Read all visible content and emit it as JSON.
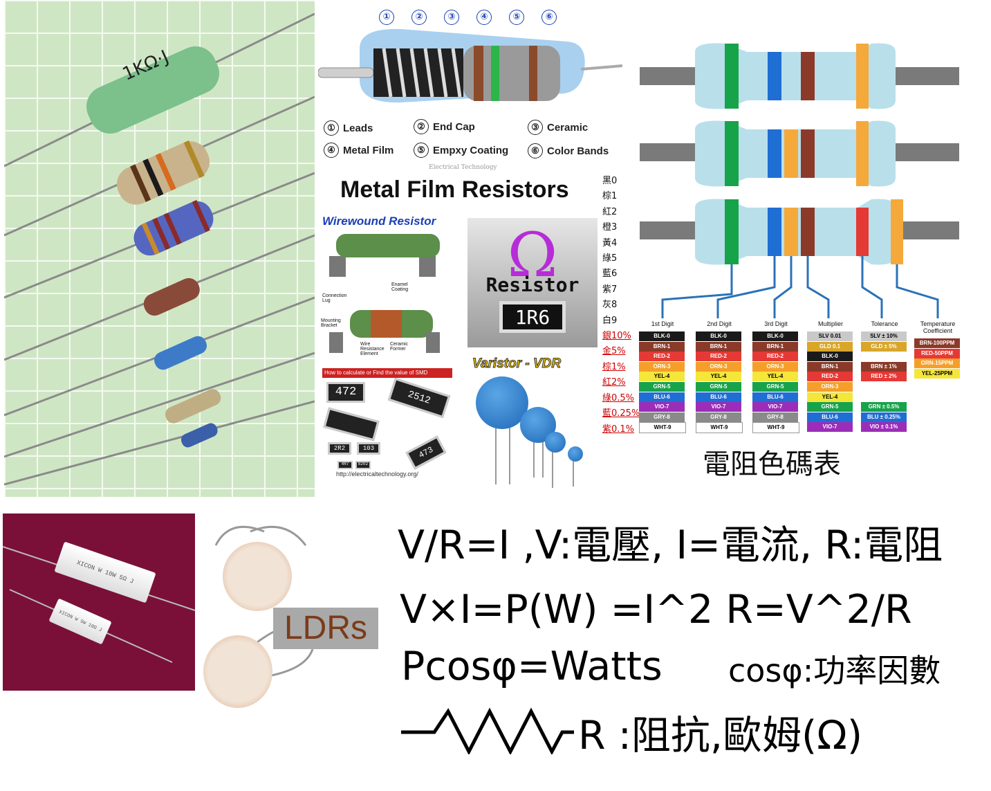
{
  "metal_film": {
    "top_numbers": [
      "①",
      "②",
      "③",
      "④",
      "⑤",
      "⑥"
    ],
    "parts": [
      {
        "num": "①",
        "label": "Leads"
      },
      {
        "num": "②",
        "label": "End Cap"
      },
      {
        "num": "③",
        "label": "Ceramic"
      },
      {
        "num": "④",
        "label": "Metal Film"
      },
      {
        "num": "⑤",
        "label": "Empxy Coating"
      },
      {
        "num": "⑥",
        "label": "Color Bands"
      }
    ],
    "watermark": "Electrical Technology",
    "title": "Metal Film Resistors"
  },
  "wirewound": {
    "title": "Wirewound Resistor",
    "labels": {
      "enamel": "Enamel Coating",
      "connection": "Connection Lug",
      "mounting": "Mounting Bracket",
      "wire": "Wire Resistance Element",
      "ceramic": "Ceramic Former"
    }
  },
  "smd": {
    "header": "How to calculate or Find the value of SMD Resistors?",
    "codes": [
      "472",
      "2512",
      "2R2",
      "103",
      "4R7",
      "8202",
      "473"
    ],
    "url": "http://electricaltechnology.org/"
  },
  "omega_box": {
    "symbol": "Ω",
    "label": "Resistor",
    "chip": "1R6"
  },
  "varistor": {
    "title": "Varistor - VDR"
  },
  "chinese_colors": [
    {
      "text": "黑0",
      "red": false
    },
    {
      "text": "棕1",
      "red": false
    },
    {
      "text": "紅2",
      "red": false
    },
    {
      "text": "橙3",
      "red": false
    },
    {
      "text": "黃4",
      "red": false
    },
    {
      "text": "綠5",
      "red": false
    },
    {
      "text": "藍6",
      "red": false
    },
    {
      "text": "紫7",
      "red": false
    },
    {
      "text": "灰8",
      "red": false
    },
    {
      "text": "白9",
      "red": false
    },
    {
      "text": "銀10%",
      "red": true
    },
    {
      "text": "金5%",
      "red": true
    },
    {
      "text": "棕1%",
      "red": true
    },
    {
      "text": "紅2%",
      "red": true
    },
    {
      "text": "綠0.5%",
      "red": true
    },
    {
      "text": "藍0.25%",
      "red": true
    },
    {
      "text": "紫0.1%",
      "red": true
    }
  ],
  "color_code": {
    "columns": [
      {
        "title": "1st Digit",
        "cells": [
          [
            "BLK-0",
            "#1a1a1a",
            "#fff"
          ],
          [
            "BRN-1",
            "#8b3a2a",
            "#fff"
          ],
          [
            "RED-2",
            "#e53935",
            "#fff"
          ],
          [
            "ORN-3",
            "#f59f2a",
            "#fff"
          ],
          [
            "YEL-4",
            "#f5e63a",
            "#000"
          ],
          [
            "GRN-5",
            "#17a34a",
            "#fff"
          ],
          [
            "BLU-6",
            "#1f6ed4",
            "#fff"
          ],
          [
            "VIO-7",
            "#9b2db8",
            "#fff"
          ],
          [
            "GRY-8",
            "#8a8a8a",
            "#fff"
          ],
          [
            "WHT-9",
            "#ffffff",
            "#000"
          ]
        ]
      },
      {
        "title": "2nd Digit",
        "cells": [
          [
            "BLK-0",
            "#1a1a1a",
            "#fff"
          ],
          [
            "BRN-1",
            "#8b3a2a",
            "#fff"
          ],
          [
            "RED-2",
            "#e53935",
            "#fff"
          ],
          [
            "ORN-3",
            "#f59f2a",
            "#fff"
          ],
          [
            "YEL-4",
            "#f5e63a",
            "#000"
          ],
          [
            "GRN-5",
            "#17a34a",
            "#fff"
          ],
          [
            "BLU-6",
            "#1f6ed4",
            "#fff"
          ],
          [
            "VIO-7",
            "#9b2db8",
            "#fff"
          ],
          [
            "GRY-8",
            "#8a8a8a",
            "#fff"
          ],
          [
            "WHT-9",
            "#ffffff",
            "#000"
          ]
        ]
      },
      {
        "title": "3rd Digit",
        "cells": [
          [
            "BLK-0",
            "#1a1a1a",
            "#fff"
          ],
          [
            "BRN-1",
            "#8b3a2a",
            "#fff"
          ],
          [
            "RED-2",
            "#e53935",
            "#fff"
          ],
          [
            "ORN-3",
            "#f59f2a",
            "#fff"
          ],
          [
            "YEL-4",
            "#f5e63a",
            "#000"
          ],
          [
            "GRN-5",
            "#17a34a",
            "#fff"
          ],
          [
            "BLU-6",
            "#1f6ed4",
            "#fff"
          ],
          [
            "VIO-7",
            "#9b2db8",
            "#fff"
          ],
          [
            "GRY-8",
            "#8a8a8a",
            "#fff"
          ],
          [
            "WHT-9",
            "#ffffff",
            "#000"
          ]
        ]
      },
      {
        "title": "Multiplier",
        "cells": [
          [
            "SLV 0.01",
            "#c9c9c9",
            "#000"
          ],
          [
            "GLD 0.1",
            "#d9a62a",
            "#fff"
          ],
          [
            "BLK-0",
            "#1a1a1a",
            "#fff"
          ],
          [
            "BRN-1",
            "#8b3a2a",
            "#fff"
          ],
          [
            "RED-2",
            "#e53935",
            "#fff"
          ],
          [
            "ORN-3",
            "#f59f2a",
            "#fff"
          ],
          [
            "YEL-4",
            "#f5e63a",
            "#000"
          ],
          [
            "GRN-5",
            "#17a34a",
            "#fff"
          ],
          [
            "BLU-6",
            "#1f6ed4",
            "#fff"
          ],
          [
            "VIO-7",
            "#9b2db8",
            "#fff"
          ]
        ]
      },
      {
        "title": "Tolerance",
        "cells": [
          [
            "SLV ± 10%",
            "#c9c9c9",
            "#000"
          ],
          [
            "GLD ± 5%",
            "#d9a62a",
            "#fff"
          ],
          null,
          [
            "BRN ± 1%",
            "#8b3a2a",
            "#fff"
          ],
          [
            "RED ± 2%",
            "#e53935",
            "#fff"
          ],
          null,
          null,
          [
            "GRN ± 0.5%",
            "#17a34a",
            "#fff"
          ],
          [
            "BLU ± 0.25%",
            "#1f6ed4",
            "#fff"
          ],
          [
            "VIO ± 0.1%",
            "#9b2db8",
            "#fff"
          ]
        ]
      },
      {
        "title": "Temperature Coefficient",
        "cells": [
          [
            "BRN-100PPM",
            "#8b3a2a",
            "#fff"
          ],
          [
            "RED-50PPM",
            "#e53935",
            "#fff"
          ],
          [
            "ORN-15PPM",
            "#f59f2a",
            "#fff"
          ],
          [
            "YEL-25PPM",
            "#f5e63a",
            "#000"
          ]
        ]
      }
    ],
    "title": "電阻色碼表"
  },
  "cement": {
    "r1": "XICON W 10W 5Ω J",
    "r2": "XICON W 5W 10Ω J"
  },
  "ldr": {
    "label": "LDRs"
  },
  "photo": {
    "marking": "1KΩ·J"
  },
  "formulas": {
    "line1": "V/R=I ,V:電壓, I=電流, R:電阻",
    "line2": "V×I=P(W) =I^2 R=V^2/R",
    "line3a": "Pcosφ=Watts",
    "line3b": "cosφ:功率因數",
    "line4": "R :阻抗,歐姆(Ω)"
  }
}
